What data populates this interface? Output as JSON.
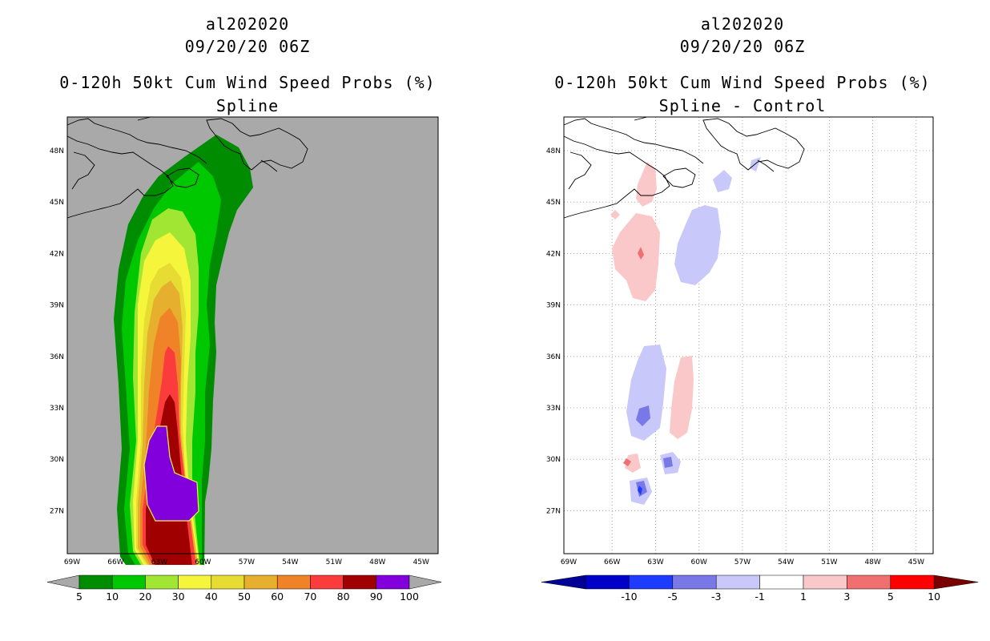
{
  "left": {
    "storm_id": "al202020",
    "datetime": "09/20/20 06Z",
    "product": "0-120h 50kt Cum Wind Speed Probs (%)",
    "subtitle": "Spline",
    "colorbar": {
      "colors": [
        "#008c00",
        "#00c800",
        "#a0e632",
        "#f5f53c",
        "#e6dc32",
        "#e6af2d",
        "#f08228",
        "#fa3c3c",
        "#a00000",
        "#8200dc"
      ],
      "labels": [
        "5",
        "10",
        "20",
        "30",
        "40",
        "50",
        "60",
        "70",
        "80",
        "90",
        "100"
      ]
    }
  },
  "right": {
    "storm_id": "al202020",
    "datetime": "09/20/20 06Z",
    "product": "0-120h 50kt Cum Wind Speed Probs (%)",
    "subtitle": "Spline - Control",
    "colorbar": {
      "colors": [
        "#0000c8",
        "#1e3cff",
        "#7878e6",
        "#c8c8fa",
        "#ffffff",
        "#fac8c8",
        "#f07070",
        "#ff0000"
      ],
      "end_colors": [
        "#000096",
        "#780000"
      ],
      "labels": [
        "-10",
        "-5",
        "-3",
        "-1",
        "1",
        "3",
        "5",
        "10"
      ]
    }
  },
  "axes": {
    "lon_labels": [
      "69W",
      "66W",
      "63W",
      "60W",
      "57W",
      "54W",
      "51W",
      "48W",
      "45W"
    ],
    "lat_labels": [
      "48N",
      "45N",
      "42N",
      "39N",
      "36N",
      "33N",
      "30N",
      "27N"
    ]
  }
}
